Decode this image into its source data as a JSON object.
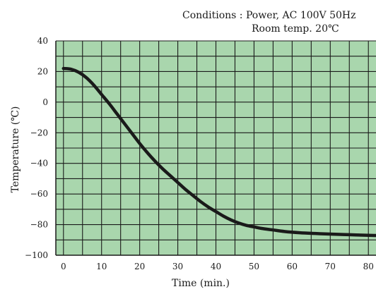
{
  "colors": {
    "plot_background": "#a9d6ad",
    "grid": "#1a1a1a",
    "curve": "#1a1a1a",
    "text": "#1a1a1a"
  },
  "chart_data": {
    "type": "line",
    "title": "",
    "annotation_lines": [
      "Conditions : Power, AC 100V 50Hz",
      "Room temp. 20℃"
    ],
    "xlabel": "Time (min.)",
    "ylabel": "Temperature (℃)",
    "xlim": [
      -2,
      82
    ],
    "ylim": [
      -100,
      40
    ],
    "x_ticks": [
      0,
      10,
      20,
      30,
      40,
      50,
      60,
      70,
      80
    ],
    "y_ticks": [
      40,
      20,
      0,
      -20,
      -40,
      -60,
      -80,
      -100
    ],
    "x_grid_step": 5,
    "y_grid_step": 10,
    "grid": true,
    "legend": "none",
    "series": [
      {
        "x": [
          0,
          2,
          4,
          6,
          8,
          10,
          12,
          14,
          16,
          18,
          20,
          22,
          24,
          26,
          28,
          30,
          32,
          34,
          36,
          38,
          40,
          42,
          44,
          46,
          48,
          50,
          52,
          55,
          58,
          62,
          66,
          70,
          75,
          80,
          82
        ],
        "values": [
          22,
          21.5,
          19.5,
          16,
          11,
          5,
          -1,
          -7.5,
          -14,
          -20.5,
          -27,
          -33,
          -38.5,
          -43.5,
          -48,
          -52.5,
          -57,
          -61,
          -65,
          -68.5,
          -71.5,
          -74.5,
          -77,
          -79,
          -80.5,
          -81.5,
          -82.5,
          -83.5,
          -84.5,
          -85.3,
          -85.8,
          -86.2,
          -86.6,
          -87,
          -87.1
        ]
      }
    ]
  }
}
